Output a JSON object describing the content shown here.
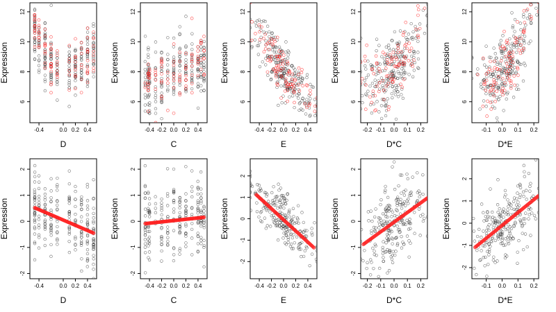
{
  "chart_data": [
    {
      "type": "scatter",
      "xlabel": "D",
      "ylabel": "Expression",
      "xlim": [
        -0.55,
        0.55
      ],
      "ylim": [
        4.6,
        12.6
      ],
      "xticks": [
        -0.4,
        0.0,
        0.2,
        0.4
      ],
      "xtick_labels": [
        "-0.4",
        "0.0",
        "0.2",
        "0.4"
      ],
      "yticks": [
        6,
        8,
        10,
        12
      ],
      "ytick_labels": [
        "6",
        "8",
        "10",
        "12"
      ],
      "pattern": "raw",
      "trend": {
        "a": 8.1,
        "b": -1.5,
        "c": 9.0
      },
      "noise": 1.0,
      "xcols": [
        -0.47,
        -0.4,
        -0.3,
        -0.2,
        -0.1,
        0.1,
        0.2,
        0.3,
        0.4,
        0.5
      ]
    },
    {
      "type": "scatter",
      "xlabel": "C",
      "ylabel": "Expression",
      "xlim": [
        -0.55,
        0.55
      ],
      "ylim": [
        4.6,
        12.6
      ],
      "xticks": [
        -0.4,
        -0.2,
        0.0,
        0.2,
        0.4
      ],
      "xtick_labels": [
        "-0.4",
        "-0.2",
        "0.0",
        "0.2",
        "0.4"
      ],
      "yticks": [
        6,
        8,
        10,
        12
      ],
      "ytick_labels": [
        "6",
        "8",
        "10",
        "12"
      ],
      "pattern": "raw",
      "trend": {
        "a": 7.9,
        "b": 1.6,
        "c": 0.0
      },
      "noise": 1.2,
      "xcols": [
        -0.47,
        -0.42,
        -0.4,
        -0.3,
        -0.2,
        -0.1,
        0.0,
        0.1,
        0.2,
        0.3,
        0.4,
        0.45,
        0.5
      ]
    },
    {
      "type": "scatter",
      "xlabel": "E",
      "ylabel": "Expression",
      "xlim": [
        -0.55,
        0.55
      ],
      "ylim": [
        4.6,
        12.6
      ],
      "xticks": [
        -0.4,
        -0.2,
        0.0,
        0.2,
        0.4
      ],
      "xtick_labels": [
        "-0.4",
        "-0.2",
        "0.0",
        "0.2",
        "0.4"
      ],
      "yticks": [
        6,
        8,
        10,
        12
      ],
      "ytick_labels": [
        "6",
        "8",
        "10",
        "12"
      ],
      "pattern": "raw",
      "trend": {
        "a": 8.2,
        "b": -4.8,
        "c": 0.0
      },
      "noise": 0.9,
      "xcols": null
    },
    {
      "type": "scatter",
      "xlabel": "D*C",
      "ylabel": "Expression",
      "xlim": [
        -0.25,
        0.25
      ],
      "ylim": [
        4.6,
        12.6
      ],
      "xticks": [
        -0.2,
        -0.1,
        0.0,
        0.1,
        0.2
      ],
      "xtick_labels": [
        "-0.2",
        "-0.1",
        "0.0",
        "0.1",
        "0.2"
      ],
      "yticks": [
        6,
        8,
        10,
        12
      ],
      "ytick_labels": [
        "6",
        "8",
        "10",
        "12"
      ],
      "pattern": "raw",
      "trend": {
        "a": 8.0,
        "b": 9.0,
        "c": 35.0
      },
      "noise": 1.3,
      "xcols": null
    },
    {
      "type": "scatter",
      "xlabel": "D*E",
      "ylabel": "Expression",
      "xlim": [
        -0.19,
        0.23
      ],
      "ylim": [
        4.6,
        12.6
      ],
      "xticks": [
        -0.1,
        0.0,
        0.1,
        0.2
      ],
      "xtick_labels": [
        "-0.1",
        "0.0",
        "0.1",
        "0.2"
      ],
      "yticks": [
        6,
        8,
        10,
        12
      ],
      "ytick_labels": [
        "6",
        "8",
        "10",
        "12"
      ],
      "pattern": "raw",
      "trend": {
        "a": 7.9,
        "b": 11.0,
        "c": 60.0
      },
      "noise": 1.1,
      "xcols": null
    },
    {
      "type": "scatter",
      "xlabel": "D",
      "ylabel": "Expression",
      "xlim": [
        -0.55,
        0.55
      ],
      "ylim": [
        -2.2,
        2.4
      ],
      "xticks": [
        -0.4,
        0.0,
        0.2,
        0.4
      ],
      "xtick_labels": [
        "-0.4",
        "0.0",
        "0.2",
        "0.4"
      ],
      "yticks": [
        -2,
        -1,
        0,
        1,
        2
      ],
      "ytick_labels": [
        "-2",
        "-1",
        "0",
        "1",
        "2"
      ],
      "pattern": "partial",
      "fit": {
        "intercept": 0.05,
        "slope": -1.0,
        "x0": -0.47,
        "x1": 0.5
      },
      "noise": 0.75,
      "xcols": [
        -0.47,
        -0.4,
        -0.3,
        -0.2,
        -0.1,
        0.1,
        0.2,
        0.3,
        0.4,
        0.5
      ]
    },
    {
      "type": "scatter",
      "xlabel": "C",
      "ylabel": "Expression",
      "xlim": [
        -0.55,
        0.55
      ],
      "ylim": [
        -2.2,
        2.4
      ],
      "xticks": [
        -0.4,
        -0.2,
        0.0,
        0.2,
        0.4
      ],
      "xtick_labels": [
        "-0.4",
        "-0.2",
        "0.0",
        "0.2",
        "0.4"
      ],
      "yticks": [
        -2,
        -1,
        0,
        1,
        2
      ],
      "ytick_labels": [
        "-2",
        "-1",
        "0",
        "1",
        "2"
      ],
      "pattern": "partial",
      "fit": {
        "intercept": 0.03,
        "slope": 0.25,
        "x0": -0.47,
        "x1": 0.5
      },
      "noise": 0.75,
      "xcols": [
        -0.47,
        -0.42,
        -0.4,
        -0.3,
        -0.2,
        -0.1,
        0.0,
        0.1,
        0.2,
        0.3,
        0.4,
        0.45,
        0.5
      ]
    },
    {
      "type": "scatter",
      "xlabel": "E",
      "ylabel": "Expression",
      "xlim": [
        -0.55,
        0.55
      ],
      "ylim": [
        -2.8,
        2.8
      ],
      "xticks": [
        -0.4,
        -0.2,
        0.0,
        0.2,
        0.4
      ],
      "xtick_labels": [
        "-0.4",
        "-0.2",
        "0.0",
        "0.2",
        "0.4"
      ],
      "yticks": [
        -2,
        -1,
        0,
        1,
        2
      ],
      "ytick_labels": [
        "-2",
        "-1",
        "0",
        "1",
        "2"
      ],
      "pattern": "partial",
      "fit": {
        "intercept": -0.05,
        "slope": -2.6,
        "x0": -0.45,
        "x1": 0.5
      },
      "noise": 0.6,
      "xcols": null
    },
    {
      "type": "scatter",
      "xlabel": "D*C",
      "ylabel": "Expression",
      "xlim": [
        -0.25,
        0.25
      ],
      "ylim": [
        -2.2,
        2.4
      ],
      "xticks": [
        -0.2,
        -0.1,
        0.0,
        0.1,
        0.2
      ],
      "xtick_labels": [
        "-0.2",
        "-0.1",
        "0.0",
        "0.1",
        "0.2"
      ],
      "yticks": [
        -2,
        -1,
        0,
        1,
        2
      ],
      "ytick_labels": [
        "-2",
        "-1",
        "0",
        "1",
        "2"
      ],
      "pattern": "partial",
      "fit": {
        "intercept": -0.03,
        "slope": 3.7,
        "x0": -0.23,
        "x1": 0.25
      },
      "noise": 0.75,
      "xcols": null
    },
    {
      "type": "scatter",
      "xlabel": "D*E",
      "ylabel": "Expression",
      "xlim": [
        -0.19,
        0.23
      ],
      "ylim": [
        -2.5,
        2.9
      ],
      "xticks": [
        -0.1,
        0.0,
        0.1,
        0.2
      ],
      "xtick_labels": [
        "-0.1",
        "0.0",
        "0.1",
        "0.2"
      ],
      "yticks": [
        -2,
        -1,
        0,
        1,
        2
      ],
      "ytick_labels": [
        "-2",
        "-1",
        "0",
        "1",
        "2"
      ],
      "pattern": "partial",
      "fit": {
        "intercept": -0.1,
        "slope": 5.8,
        "x0": -0.17,
        "x1": 0.23
      },
      "noise": 0.75,
      "xcols": null
    }
  ],
  "colors": {
    "observed": "#333333",
    "fitted": "#ff2020",
    "box": "#000000"
  }
}
